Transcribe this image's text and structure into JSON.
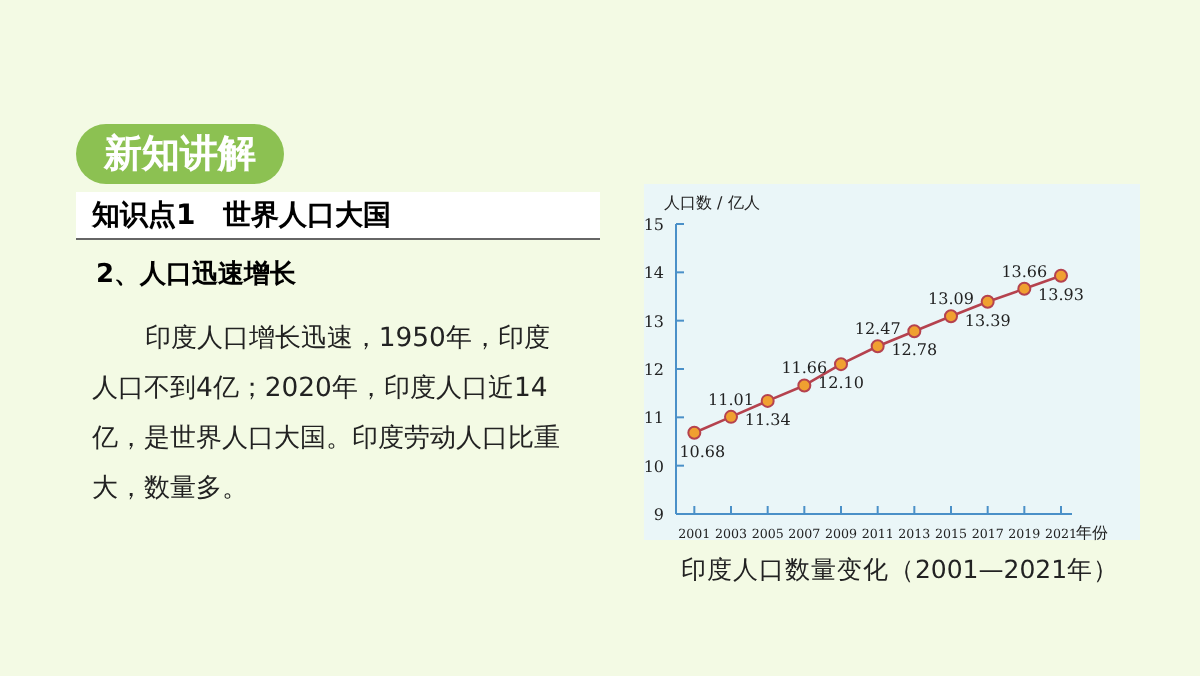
{
  "chart_data": {
    "type": "line",
    "title": "印度人口数量变化（2001—2021年）",
    "annotations": [
      "新知讲解",
      "知识点1　世界人口大国",
      "2、人口迅速增长",
      "印度人口增长迅速，1950年，印度人口不到4亿；2020年，印度人口近14亿，是世界人口大国。印度劳动人口比重大，数量多。"
    ],
    "xlabel": "年份",
    "ylabel": "人口数 / 亿人",
    "x": [
      2001,
      2003,
      2005,
      2007,
      2009,
      2011,
      2013,
      2015,
      2017,
      2019,
      2021
    ],
    "values": [
      10.68,
      11.01,
      11.34,
      11.66,
      12.1,
      12.47,
      12.78,
      13.09,
      13.39,
      13.66,
      13.93
    ],
    "value_labels": [
      "10.68",
      "11.01",
      "11.34",
      "11.66",
      "12.10",
      "12.47",
      "12.78",
      "13.09",
      "13.39",
      "13.66",
      "13.93"
    ],
    "color": "#b5424e",
    "marker": "circle",
    "line_style": "solid",
    "xlim": [
      2000,
      2021.6
    ],
    "xticks": [
      2001,
      2003,
      2005,
      2007,
      2009,
      2011,
      2013,
      2015,
      2017,
      2019,
      2021
    ],
    "ylim": [
      9,
      15
    ],
    "yticks": [
      9,
      10,
      11,
      12,
      13,
      14,
      15
    ]
  }
}
